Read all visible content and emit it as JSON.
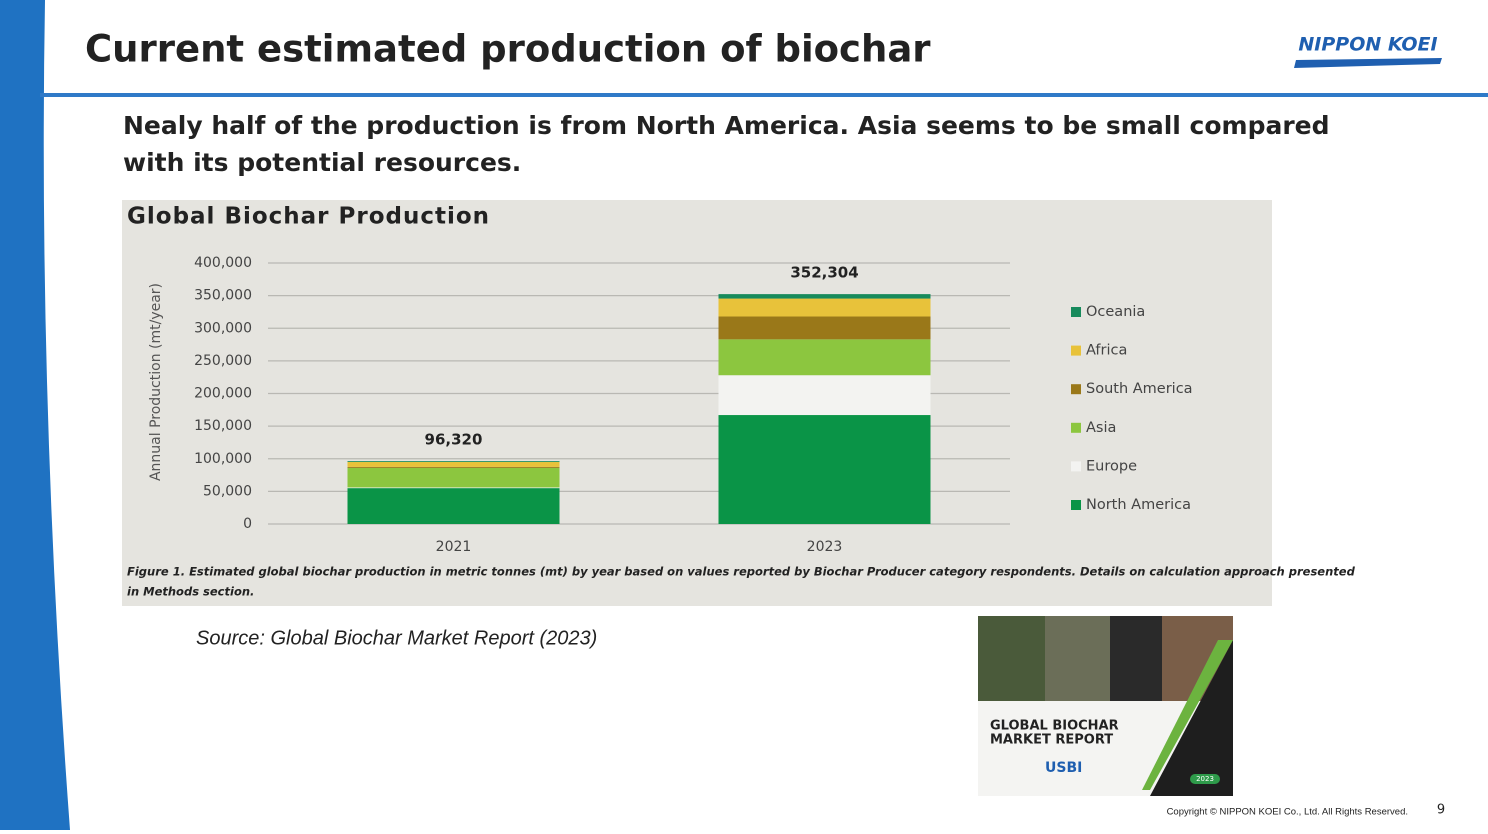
{
  "slide": {
    "title": "Current estimated production of biochar",
    "logo": "NIPPON KOEI",
    "subtitle": [
      "Nealy half of the production is from North America. Asia seems to be small compared",
      "with its potential resources."
    ],
    "source": "Source: Global Biochar Market Report (2023)",
    "cover": {
      "lines": [
        "GLOBAL BIOCHAR",
        "MARKET REPORT"
      ],
      "brand": "USBI",
      "year": "2023"
    },
    "copyright": "Copyright © NIPPON KOEI Co., Ltd.  All Rights Reserved.",
    "page": "9"
  },
  "chart_data": {
    "type": "stacked_bar",
    "title": "Global Biochar Production",
    "y_label": "Annual Production (mt/year)",
    "caption": [
      "Figure 1. Estimated global biochar production in metric tonnes (mt) by year based on values reported by Biochar Producer category respondents. Details on calculation approach presented",
      "in Methods section."
    ],
    "categories": [
      "2021",
      "2023"
    ],
    "series": [
      {
        "name": "North America",
        "color": "#0a9447",
        "values": [
          55000,
          167000
        ]
      },
      {
        "name": "Europe",
        "color": "#f3f3f1",
        "values": [
          1000,
          61000
        ]
      },
      {
        "name": "Asia",
        "color": "#8cc63f",
        "values": [
          30000,
          55000
        ]
      },
      {
        "name": "South America",
        "color": "#9a7819",
        "values": [
          1500,
          35000
        ]
      },
      {
        "name": "Africa",
        "color": "#e8c23a",
        "values": [
          7500,
          27500
        ]
      },
      {
        "name": "Oceania",
        "color": "#178a5c",
        "values": [
          1320,
          6804
        ]
      }
    ],
    "totals": [
      96320,
      352304
    ],
    "total_labels": [
      "96,320",
      "352,304"
    ],
    "ylim": [
      0,
      400000
    ],
    "yticks": [
      0,
      {
        "value": 50000,
        "label": "50,000"
      },
      {
        "value": 100000,
        "label": "100,000"
      },
      {
        "value": 150000,
        "label": "150,000"
      },
      {
        "value": 200000,
        "label": "200,000"
      },
      {
        "value": 250000,
        "label": "250,000"
      },
      {
        "value": 300000,
        "label": "300,000"
      },
      {
        "value": 350000,
        "label": "350,000"
      },
      {
        "value": 400000,
        "label": "400,000"
      }
    ],
    "grid": true,
    "legend": "right"
  }
}
